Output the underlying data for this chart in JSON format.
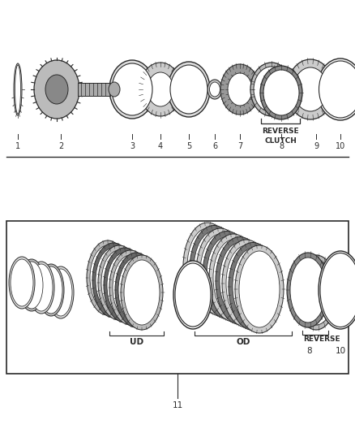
{
  "bg_color": "#ffffff",
  "line_color": "#2a2a2a",
  "gray_light": "#cccccc",
  "gray_med": "#999999",
  "gray_dark": "#666666",
  "gray_fill": "#dddddd",
  "top_labels": [
    "1",
    "2",
    "3",
    "4",
    "5",
    "6",
    "7",
    "8",
    "9",
    "10"
  ],
  "reverse_clutch_text": "REVERSE\nCLUTCH",
  "ud_text": "UD",
  "od_text": "OD",
  "reverse_text": "REVERSE",
  "label_11": "11",
  "label_8": "8",
  "label_10": "10"
}
